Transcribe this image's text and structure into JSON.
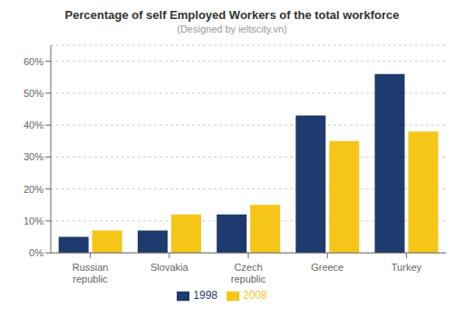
{
  "chart_data": {
    "type": "bar",
    "title": "Percentage of self Employed Workers of the total workforce",
    "subtitle": "(Designed by ieltscity.vn)",
    "categories": [
      "Russian\nrepublic",
      "Slovakia",
      "Czech\nrepublic",
      "Greece",
      "Turkey"
    ],
    "series": [
      {
        "name": "1998",
        "color": "#1e3a6e",
        "values": [
          5,
          7,
          12,
          43,
          56
        ]
      },
      {
        "name": "2008",
        "color": "#f5c518",
        "values": [
          7,
          12,
          15,
          35,
          38
        ]
      }
    ],
    "ylim": [
      0,
      65
    ],
    "yticks": [
      {
        "value": 0,
        "label": "0%"
      },
      {
        "value": 10,
        "label": "10%"
      },
      {
        "value": 20,
        "label": "20%"
      },
      {
        "value": 30,
        "label": "30%"
      },
      {
        "value": 40,
        "label": "40%"
      },
      {
        "value": 50,
        "label": "50%"
      },
      {
        "value": 60,
        "label": "60%"
      }
    ],
    "grid": true,
    "legend": "bottom"
  }
}
